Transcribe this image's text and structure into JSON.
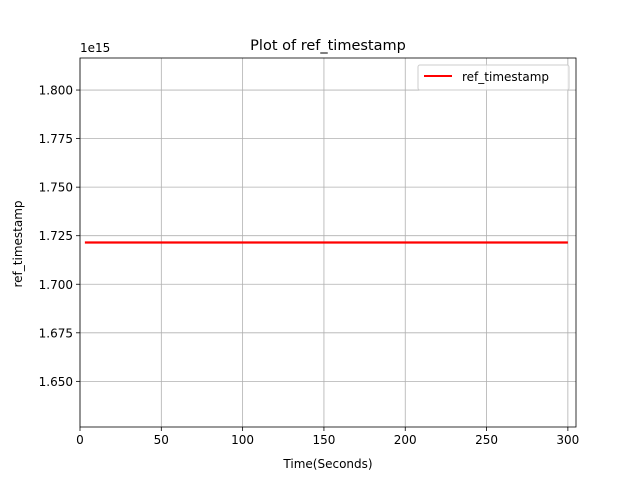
{
  "chart_data": {
    "type": "line",
    "title": "Plot of ref_timestamp",
    "xlabel": "Time(Seconds)",
    "ylabel": "ref_timestamp",
    "offset_label": "1e15",
    "xlim": [
      0,
      305
    ],
    "ylim": [
      1.6265,
      1.8165
    ],
    "x_ticks": [
      0,
      50,
      100,
      150,
      200,
      250,
      300
    ],
    "x_tick_labels": [
      "0",
      "50",
      "100",
      "150",
      "200",
      "250",
      "300"
    ],
    "y_ticks": [
      1.65,
      1.675,
      1.7,
      1.725,
      1.75,
      1.775,
      1.8
    ],
    "y_tick_labels": [
      "1.650",
      "1.675",
      "1.700",
      "1.725",
      "1.750",
      "1.775",
      "1.800"
    ],
    "grid": true,
    "legend_position": "top-right",
    "series": [
      {
        "name": "ref_timestamp",
        "color": "#ff0000",
        "x": [
          3,
          300
        ],
        "y": [
          1.7215,
          1.7215
        ]
      }
    ]
  }
}
